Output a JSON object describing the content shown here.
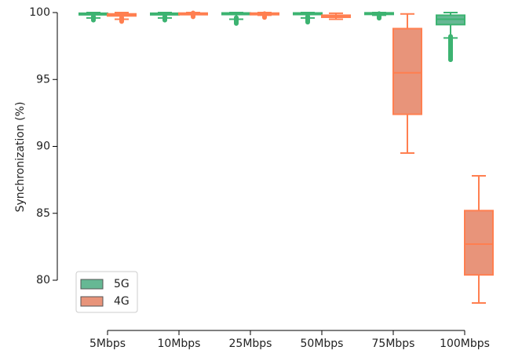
{
  "chart_data": {
    "type": "box",
    "title": "",
    "xlabel": "",
    "ylabel": "Synchronization (%)",
    "ylim": [
      77.5,
      100
    ],
    "yticks": [
      80,
      85,
      90,
      95,
      100
    ],
    "grid": false,
    "legend_position": "lower-left",
    "categories": [
      "5Mbps",
      "10Mbps",
      "25Mbps",
      "50Mbps",
      "75Mbps",
      "100Mbps"
    ],
    "series": [
      {
        "name": "5G",
        "color": "#3cb371",
        "fill": "#66b894",
        "boxes": [
          {
            "whislo": 99.6,
            "q1": 99.85,
            "med": 99.9,
            "q3": 99.95,
            "whishi": 100.0,
            "fliers_low": 99.55,
            "fliers_high": 100.0
          },
          {
            "whislo": 99.6,
            "q1": 99.85,
            "med": 99.9,
            "q3": 99.95,
            "whishi": 100.0,
            "fliers_low": 99.55,
            "fliers_high": 100.0
          },
          {
            "whislo": 99.5,
            "q1": 99.88,
            "med": 99.93,
            "q3": 99.97,
            "whishi": 100.0,
            "fliers_low": 99.3,
            "fliers_high": 100.0
          },
          {
            "whislo": 99.6,
            "q1": 99.88,
            "med": 99.93,
            "q3": 99.97,
            "whishi": 100.0,
            "fliers_low": 99.4,
            "fliers_high": 100.0
          },
          {
            "whislo": 99.8,
            "q1": 99.9,
            "med": 99.95,
            "q3": 99.98,
            "whishi": 100.0,
            "fliers_low": 99.7,
            "fliers_high": 100.0
          },
          {
            "whislo": 98.1,
            "q1": 99.1,
            "med": 99.5,
            "q3": 99.8,
            "whishi": 100.0,
            "fliers_low": 96.6,
            "fliers_high": 97.9
          }
        ]
      },
      {
        "name": "4G",
        "color": "#ff7f50",
        "fill": "#e8947a",
        "boxes": [
          {
            "whislo": 99.5,
            "q1": 99.75,
            "med": 99.85,
            "q3": 99.9,
            "whishi": 100.0,
            "fliers_low": 99.45,
            "fliers_high": 99.95
          },
          {
            "whislo": 99.85,
            "q1": 99.9,
            "med": 99.93,
            "q3": 99.96,
            "whishi": 100.0,
            "fliers_low": 99.8,
            "fliers_high": 99.95
          },
          {
            "whislo": 99.8,
            "q1": 99.88,
            "med": 99.92,
            "q3": 99.96,
            "whishi": 100.0,
            "fliers_low": 99.75,
            "fliers_high": 99.95
          },
          {
            "whislo": 99.5,
            "q1": 99.65,
            "med": 99.72,
            "q3": 99.8,
            "whishi": 99.95,
            "fliers_low": 99.5,
            "fliers_high": 99.95
          },
          {
            "whislo": 89.5,
            "q1": 92.4,
            "med": 95.5,
            "q3": 98.8,
            "whishi": 99.9,
            "fliers_low": null,
            "fliers_high": null
          },
          {
            "whislo": 78.3,
            "q1": 80.4,
            "med": 82.7,
            "q3": 85.2,
            "whishi": 87.8,
            "fliers_low": null,
            "fliers_high": null
          }
        ]
      }
    ]
  }
}
